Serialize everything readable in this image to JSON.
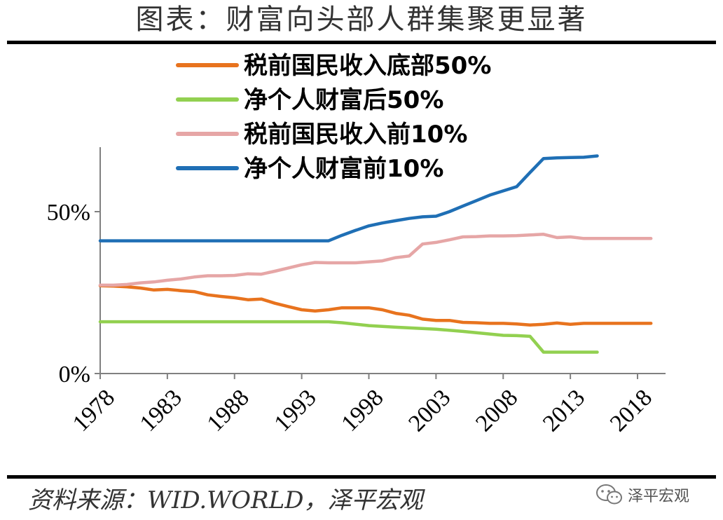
{
  "page": {
    "title": "图表：财富向头部人群集聚更显著",
    "source": "资料来源：WID.WORLD，泽平宏观",
    "watermark": "泽平宏观",
    "watermark_icon": "wechat-bubbles-icon"
  },
  "chart_data": {
    "type": "line",
    "title": "图表：财富向头部人群集聚更显著",
    "xlabel": "",
    "ylabel": "",
    "xlim": [
      1978,
      2020
    ],
    "ylim": [
      0,
      0.7
    ],
    "x_ticks": [
      1978,
      1983,
      1988,
      1993,
      1998,
      2003,
      2008,
      2013,
      2018
    ],
    "y_ticks": [
      0,
      0.5
    ],
    "y_tick_labels": [
      "0%",
      "50%"
    ],
    "grid": false,
    "legend_position": "top-center",
    "series": [
      {
        "name": "税前国民收入底部50%",
        "color": "#e8731e",
        "x": [
          1978,
          1979,
          1980,
          1981,
          1982,
          1983,
          1984,
          1985,
          1986,
          1987,
          1988,
          1989,
          1990,
          1991,
          1992,
          1993,
          1994,
          1995,
          1996,
          1997,
          1998,
          1999,
          2000,
          2001,
          2002,
          2003,
          2004,
          2005,
          2006,
          2007,
          2008,
          2009,
          2010,
          2011,
          2012,
          2013,
          2014,
          2015,
          2016,
          2017,
          2018,
          2019
        ],
        "values": [
          0.271,
          0.27,
          0.268,
          0.264,
          0.258,
          0.26,
          0.256,
          0.253,
          0.243,
          0.238,
          0.234,
          0.228,
          0.23,
          0.217,
          0.207,
          0.197,
          0.193,
          0.197,
          0.203,
          0.203,
          0.203,
          0.197,
          0.186,
          0.18,
          0.168,
          0.164,
          0.164,
          0.158,
          0.157,
          0.155,
          0.155,
          0.153,
          0.15,
          0.152,
          0.156,
          0.152,
          0.155,
          0.155,
          0.155,
          0.155,
          0.155,
          0.155
        ]
      },
      {
        "name": "净个人财富后50%",
        "color": "#92d050",
        "x": [
          1978,
          1980,
          1985,
          1990,
          1995,
          1996,
          1998,
          2000,
          2003,
          2005,
          2007,
          2008,
          2009,
          2010,
          2011,
          2012,
          2013,
          2014,
          2015
        ],
        "values": [
          0.16,
          0.16,
          0.16,
          0.16,
          0.16,
          0.157,
          0.148,
          0.143,
          0.137,
          0.13,
          0.122,
          0.118,
          0.117,
          0.115,
          0.066,
          0.066,
          0.066,
          0.066,
          0.066
        ]
      },
      {
        "name": "税前国民收入前10%",
        "color": "#e6a6a6",
        "x": [
          1978,
          1979,
          1980,
          1981,
          1982,
          1983,
          1984,
          1985,
          1986,
          1987,
          1988,
          1989,
          1990,
          1991,
          1992,
          1993,
          1994,
          1995,
          1996,
          1997,
          1998,
          1999,
          2000,
          2001,
          2002,
          2003,
          2004,
          2005,
          2006,
          2007,
          2008,
          2009,
          2010,
          2011,
          2012,
          2013,
          2014,
          2015,
          2016,
          2017,
          2018,
          2019
        ],
        "values": [
          0.273,
          0.273,
          0.275,
          0.28,
          0.283,
          0.288,
          0.292,
          0.298,
          0.302,
          0.302,
          0.303,
          0.308,
          0.307,
          0.316,
          0.326,
          0.336,
          0.343,
          0.342,
          0.342,
          0.342,
          0.345,
          0.348,
          0.358,
          0.363,
          0.4,
          0.405,
          0.413,
          0.422,
          0.423,
          0.425,
          0.425,
          0.426,
          0.428,
          0.43,
          0.42,
          0.422,
          0.417,
          0.417,
          0.417,
          0.417,
          0.417,
          0.417
        ]
      },
      {
        "name": "净个人财富前10%",
        "color": "#1f6fb5",
        "x": [
          1978,
          1980,
          1985,
          1990,
          1994,
          1995,
          1996,
          1997,
          1998,
          1999,
          2000,
          2001,
          2002,
          2003,
          2004,
          2005,
          2006,
          2007,
          2008,
          2009,
          2010,
          2011,
          2012,
          2013,
          2014,
          2015
        ],
        "values": [
          0.41,
          0.41,
          0.41,
          0.41,
          0.41,
          0.41,
          0.427,
          0.442,
          0.456,
          0.465,
          0.472,
          0.479,
          0.484,
          0.486,
          0.5,
          0.517,
          0.534,
          0.551,
          0.564,
          0.577,
          0.621,
          0.664,
          0.666,
          0.667,
          0.668,
          0.672
        ]
      }
    ]
  }
}
